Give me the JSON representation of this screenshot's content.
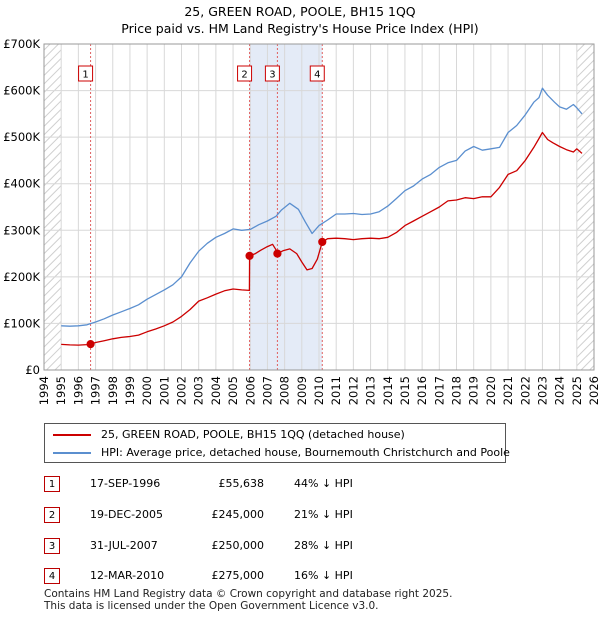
{
  "chart_data": {
    "type": "line",
    "title": "25, GREEN ROAD, POOLE, BH15 1QQ",
    "subtitle": "Price paid vs. HM Land Registry's House Price Index (HPI)",
    "ylim": [
      0,
      700000
    ],
    "xlim": [
      1994,
      2026
    ],
    "y_ticks": [
      0,
      100000,
      200000,
      300000,
      400000,
      500000,
      600000,
      700000
    ],
    "y_tick_labels": [
      "£0",
      "£100K",
      "£200K",
      "£300K",
      "£400K",
      "£500K",
      "£600K",
      "£700K"
    ],
    "x_ticks": [
      1994,
      1995,
      1996,
      1997,
      1998,
      1999,
      2000,
      2001,
      2002,
      2003,
      2004,
      2005,
      2006,
      2007,
      2008,
      2009,
      2010,
      2011,
      2012,
      2013,
      2014,
      2015,
      2016,
      2017,
      2018,
      2019,
      2020,
      2021,
      2022,
      2023,
      2024,
      2025,
      2026
    ],
    "grid": true,
    "hatched_ranges": [
      [
        1994,
        1995
      ],
      [
        2025,
        2026
      ]
    ],
    "shaded_ranges": [
      [
        2005.96,
        2007.58
      ],
      [
        2007.58,
        2010.19
      ]
    ],
    "series": [
      {
        "name": "25, GREEN ROAD, POOLE, BH15 1QQ (detached house)",
        "color": "#cc0000",
        "x": [
          1995.0,
          1995.5,
          1996.0,
          1996.5,
          1996.71,
          1997.0,
          1997.5,
          1998.0,
          1998.5,
          1999.0,
          1999.5,
          2000.0,
          2000.5,
          2001.0,
          2001.5,
          2002.0,
          2002.5,
          2003.0,
          2003.5,
          2004.0,
          2004.5,
          2005.0,
          2005.5,
          2005.95,
          2005.96,
          2006.3,
          2006.6,
          2007.0,
          2007.3,
          2007.5,
          2007.58,
          2007.9,
          2008.3,
          2008.7,
          2009.0,
          2009.3,
          2009.6,
          2009.9,
          2010.19,
          2010.5,
          2011.0,
          2011.5,
          2012.0,
          2012.5,
          2013.0,
          2013.5,
          2014.0,
          2014.5,
          2015.0,
          2015.5,
          2016.0,
          2016.5,
          2017.0,
          2017.5,
          2018.0,
          2018.5,
          2019.0,
          2019.5,
          2020.0,
          2020.5,
          2021.0,
          2021.5,
          2022.0,
          2022.5,
          2022.8,
          2023.0,
          2023.3,
          2023.6,
          2024.0,
          2024.4,
          2024.8,
          2025.0,
          2025.3
        ],
        "values": [
          55000,
          54000,
          53500,
          54500,
          55638,
          59000,
          63000,
          67000,
          70000,
          72000,
          75000,
          82000,
          88000,
          95000,
          103000,
          115000,
          130000,
          148000,
          155000,
          163000,
          170000,
          174000,
          172000,
          171000,
          245000,
          250000,
          257000,
          265000,
          270000,
          258000,
          250000,
          256000,
          260000,
          250000,
          232000,
          215000,
          218000,
          238000,
          275000,
          282000,
          283000,
          282000,
          280000,
          282000,
          283000,
          282000,
          285000,
          295000,
          310000,
          320000,
          330000,
          340000,
          350000,
          363000,
          365000,
          370000,
          368000,
          372000,
          372000,
          392000,
          420000,
          428000,
          450000,
          478000,
          497000,
          510000,
          495000,
          488000,
          480000,
          473000,
          468000,
          475000,
          465000
        ]
      },
      {
        "name": "HPI: Average price, detached house, Bournemouth Christchurch and Poole",
        "color": "#5b8fcf",
        "x": [
          1995.0,
          1995.5,
          1996.0,
          1996.5,
          1997.0,
          1997.5,
          1998.0,
          1998.5,
          1999.0,
          1999.5,
          2000.0,
          2000.5,
          2001.0,
          2001.5,
          2002.0,
          2002.5,
          2003.0,
          2003.5,
          2004.0,
          2004.5,
          2005.0,
          2005.5,
          2006.0,
          2006.5,
          2007.0,
          2007.5,
          2007.8,
          2008.3,
          2008.8,
          2009.2,
          2009.6,
          2010.0,
          2010.5,
          2011.0,
          2011.5,
          2012.0,
          2012.5,
          2013.0,
          2013.5,
          2014.0,
          2014.5,
          2015.0,
          2015.5,
          2016.0,
          2016.5,
          2017.0,
          2017.5,
          2018.0,
          2018.5,
          2019.0,
          2019.5,
          2020.0,
          2020.5,
          2021.0,
          2021.5,
          2022.0,
          2022.5,
          2022.8,
          2023.0,
          2023.3,
          2023.7,
          2024.0,
          2024.4,
          2024.8,
          2025.0,
          2025.3
        ],
        "values": [
          95000,
          94000,
          95000,
          97000,
          103000,
          110000,
          118000,
          125000,
          132000,
          140000,
          152000,
          162000,
          172000,
          183000,
          200000,
          230000,
          255000,
          272000,
          285000,
          293000,
          303000,
          300000,
          302000,
          312000,
          320000,
          330000,
          343000,
          358000,
          345000,
          318000,
          293000,
          310000,
          322000,
          335000,
          335000,
          336000,
          334000,
          335000,
          340000,
          352000,
          368000,
          385000,
          395000,
          410000,
          420000,
          435000,
          445000,
          450000,
          470000,
          480000,
          472000,
          475000,
          478000,
          510000,
          525000,
          548000,
          575000,
          585000,
          605000,
          590000,
          575000,
          565000,
          560000,
          570000,
          563000,
          550000
        ]
      }
    ],
    "sales": [
      {
        "label": "1",
        "x": 1996.71,
        "value": 55638
      },
      {
        "label": "2",
        "x": 2005.96,
        "value": 245000
      },
      {
        "label": "3",
        "x": 2007.58,
        "value": 250000
      },
      {
        "label": "4",
        "x": 2010.19,
        "value": 275000
      }
    ]
  },
  "legend": [
    {
      "label": "25, GREEN ROAD, POOLE, BH15 1QQ (detached house)",
      "color": "#cc0000"
    },
    {
      "label": "HPI: Average price, detached house, Bournemouth Christchurch and Poole",
      "color": "#5b8fcf"
    }
  ],
  "sales_table": [
    {
      "num": "1",
      "date": "17-SEP-1996",
      "price": "£55,638",
      "hpi": "44% ↓ HPI"
    },
    {
      "num": "2",
      "date": "19-DEC-2005",
      "price": "£245,000",
      "hpi": "21% ↓ HPI"
    },
    {
      "num": "3",
      "date": "31-JUL-2007",
      "price": "£250,000",
      "hpi": "28% ↓ HPI"
    },
    {
      "num": "4",
      "date": "12-MAR-2010",
      "price": "£275,000",
      "hpi": "16% ↓ HPI"
    }
  ],
  "footer": {
    "line1": "Contains HM Land Registry data © Crown copyright and database right 2025.",
    "line2": "This data is licensed under the Open Government Licence v3.0."
  }
}
